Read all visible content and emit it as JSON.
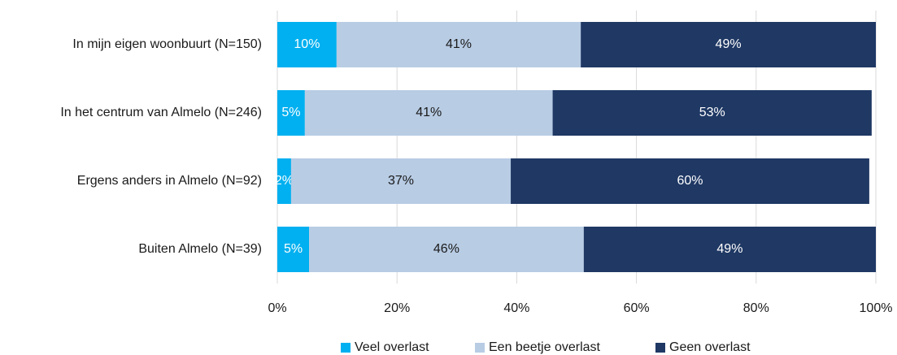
{
  "chart_data": {
    "type": "stacked-barh",
    "categories": [
      "In mijn eigen woonbuurt (N=150)",
      "In het centrum van Almelo (N=246)",
      "Ergens anders in Almelo (N=92)",
      "Buiten Almelo (N=39)"
    ],
    "series": [
      {
        "name": "Veel overlast",
        "color": "#00b0f0",
        "label_color": "#ffffff",
        "values": [
          9.9,
          4.6,
          2.3,
          5.3
        ],
        "value_labels": [
          "10%",
          "5%",
          "2%",
          "5%"
        ]
      },
      {
        "name": "Een beetje overlast",
        "color": "#b8cce4",
        "label_color": "#1a1a1a",
        "values": [
          40.8,
          41.4,
          36.7,
          45.9
        ],
        "value_labels": [
          "41%",
          "41%",
          "37%",
          "46%"
        ]
      },
      {
        "name": "Geen overlast",
        "color": "#1f3864",
        "label_color": "#ffffff",
        "values": [
          49.3,
          53.3,
          59.9,
          48.8
        ],
        "value_labels": [
          "49%",
          "53%",
          "60%",
          "49%"
        ]
      }
    ],
    "xlim": [
      0,
      100
    ],
    "xticks": [
      {
        "value": 0,
        "label": "0%"
      },
      {
        "value": 20,
        "label": "20%"
      },
      {
        "value": 40,
        "label": "40%"
      },
      {
        "value": 60,
        "label": "60%"
      },
      {
        "value": 80,
        "label": "80%"
      },
      {
        "value": 100,
        "label": "100%"
      }
    ],
    "grid": true,
    "legend": "bottom"
  }
}
